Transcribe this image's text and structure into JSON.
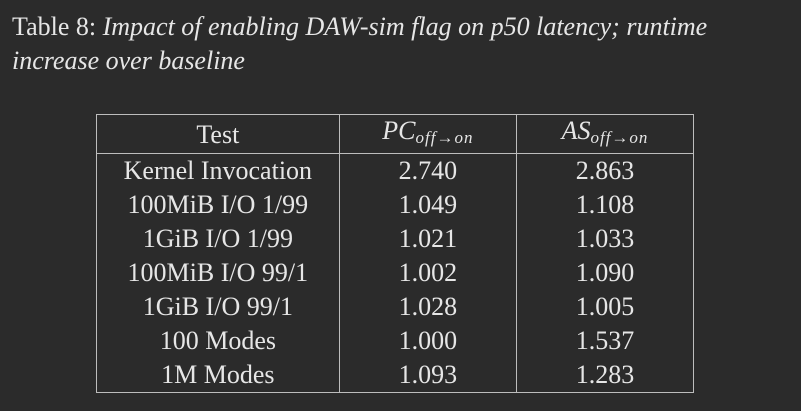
{
  "caption": {
    "label": "Table 8:",
    "text": "Impact of enabling DAW-sim flag on p50 latency; runtime increase over baseline"
  },
  "table": {
    "headers": {
      "test": "Test",
      "pc_main": "PC",
      "pc_sub": "off→on",
      "as_main": "AS",
      "as_sub": "off→on"
    },
    "rows": [
      {
        "test": "Kernel Invocation",
        "pc": "2.740",
        "as": "2.863"
      },
      {
        "test": "100MiB I/O 1/99",
        "pc": "1.049",
        "as": "1.108"
      },
      {
        "test": "1GiB I/O 1/99",
        "pc": "1.021",
        "as": "1.033"
      },
      {
        "test": "100MiB I/O 99/1",
        "pc": "1.002",
        "as": "1.090"
      },
      {
        "test": "1GiB I/O 99/1",
        "pc": "1.028",
        "as": "1.005"
      },
      {
        "test": "100 Modes",
        "pc": "1.000",
        "as": "1.537"
      },
      {
        "test": "1M Modes",
        "pc": "1.093",
        "as": "1.283"
      }
    ]
  }
}
